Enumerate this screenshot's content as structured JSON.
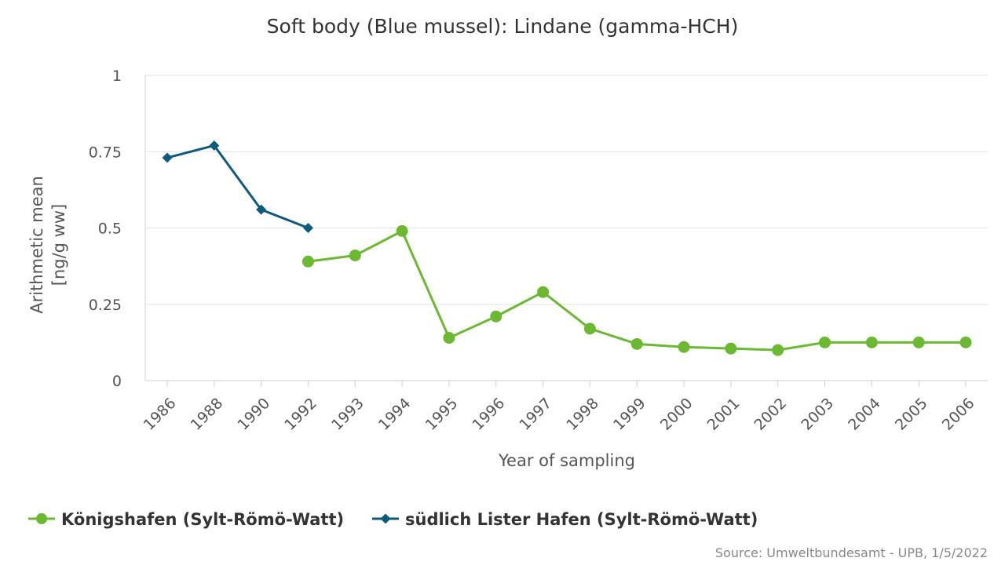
{
  "chart_data": {
    "type": "line",
    "title": "Soft body (Blue mussel): Lindane (gamma-HCH)",
    "xlabel": "Year of sampling",
    "ylabel_line1": "Arithmetic mean",
    "ylabel_line2": "[ng/g ww]",
    "categories": [
      "1986",
      "1988",
      "1990",
      "1992",
      "1993",
      "1994",
      "1995",
      "1996",
      "1997",
      "1998",
      "1999",
      "2000",
      "2001",
      "2002",
      "2003",
      "2004",
      "2005",
      "2006"
    ],
    "yticks": [
      "0",
      "0.25",
      "0.5",
      "0.75",
      "1"
    ],
    "ylim": [
      0,
      1
    ],
    "grid": true,
    "legend_position": "bottom",
    "series": [
      {
        "name": "Königshafen (Sylt-Römö-Watt)",
        "color": "#6ab930",
        "marker": "circle",
        "values": [
          null,
          null,
          null,
          0.39,
          0.41,
          0.49,
          0.14,
          0.21,
          0.29,
          0.17,
          0.12,
          0.11,
          0.105,
          0.1,
          0.125,
          0.125,
          0.125,
          0.125
        ]
      },
      {
        "name": "südlich Lister Hafen (Sylt-Römö-Watt)",
        "color": "#0e5a7e",
        "marker": "diamond",
        "values": [
          0.73,
          0.77,
          0.56,
          0.5,
          null,
          null,
          null,
          null,
          null,
          null,
          null,
          null,
          null,
          null,
          null,
          null,
          null,
          null
        ]
      }
    ]
  },
  "source": "Source: Umweltbundesamt - UPB, 1/5/2022"
}
